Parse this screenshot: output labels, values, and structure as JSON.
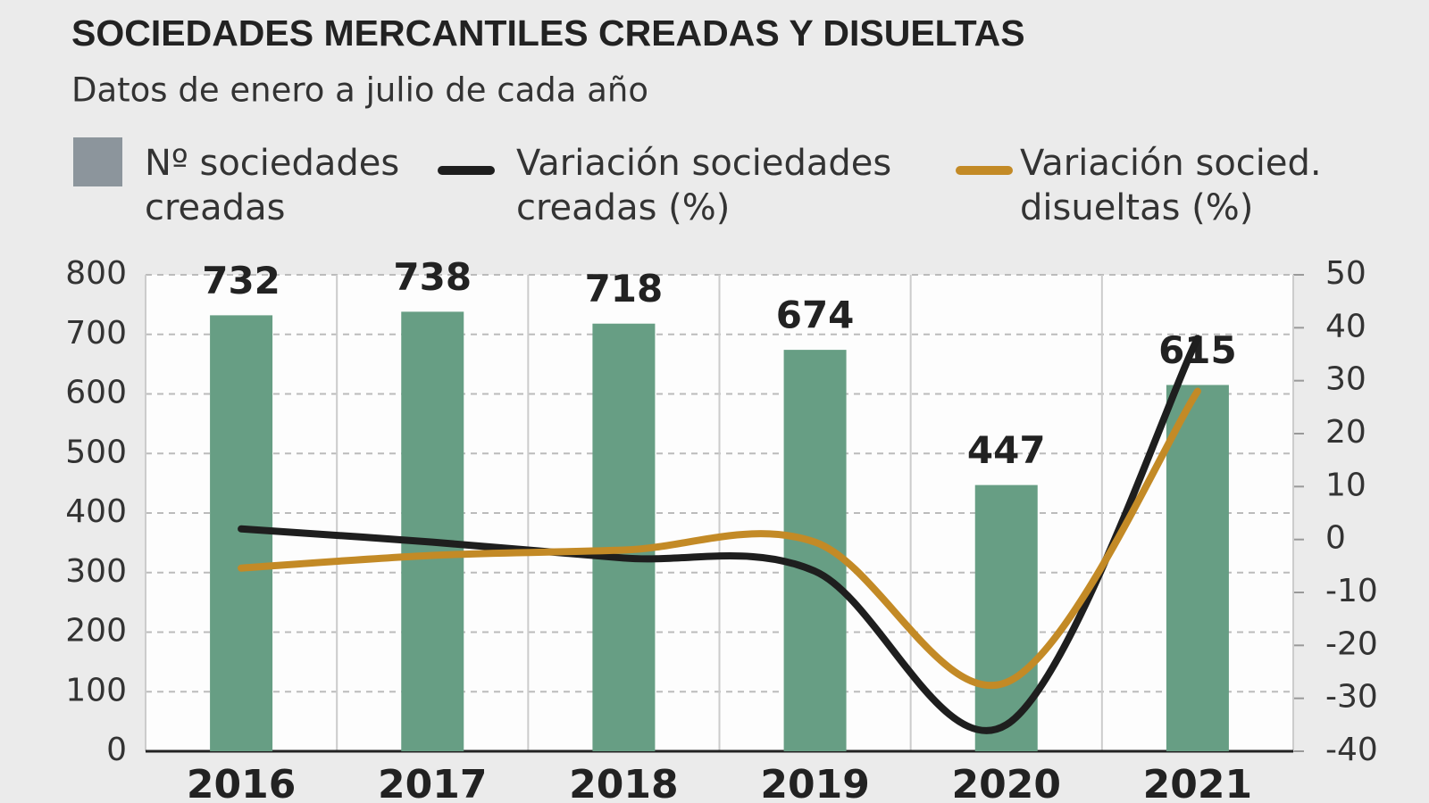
{
  "chart_data": {
    "type": "bar_line",
    "title": "SOCIEDADES MERCANTILES CREADAS Y DISUELTAS",
    "subtitle": "Datos de enero a julio de cada año",
    "categories": [
      "2016",
      "2017",
      "2018",
      "2019",
      "2020",
      "2021"
    ],
    "series": [
      {
        "name": "Nº sociedades creadas",
        "type": "bar",
        "color": "#679e84",
        "legend_swatch_color": "#8c959c",
        "values": [
          732,
          738,
          718,
          674,
          447,
          615
        ]
      },
      {
        "name": "Variación sociedades creadas (%)",
        "type": "line",
        "axis": "y2",
        "color": "#1e1e1e",
        "values": [
          2,
          -0.5,
          -3.5,
          -6,
          -35,
          38
        ]
      },
      {
        "name": "Variación socied. disueltas (%)",
        "type": "line",
        "axis": "y2",
        "color": "#c38a26",
        "values": [
          -5.4,
          -3,
          -2,
          -0.5,
          -27,
          28
        ]
      }
    ],
    "ylim": [
      0,
      800
    ],
    "yticks": [
      0,
      100,
      200,
      300,
      400,
      500,
      600,
      700,
      800
    ],
    "y2lim": [
      -40,
      50
    ],
    "y2ticks": [
      -40,
      -30,
      -20,
      -10,
      0,
      10,
      20,
      30,
      40,
      50
    ],
    "grid": true
  }
}
